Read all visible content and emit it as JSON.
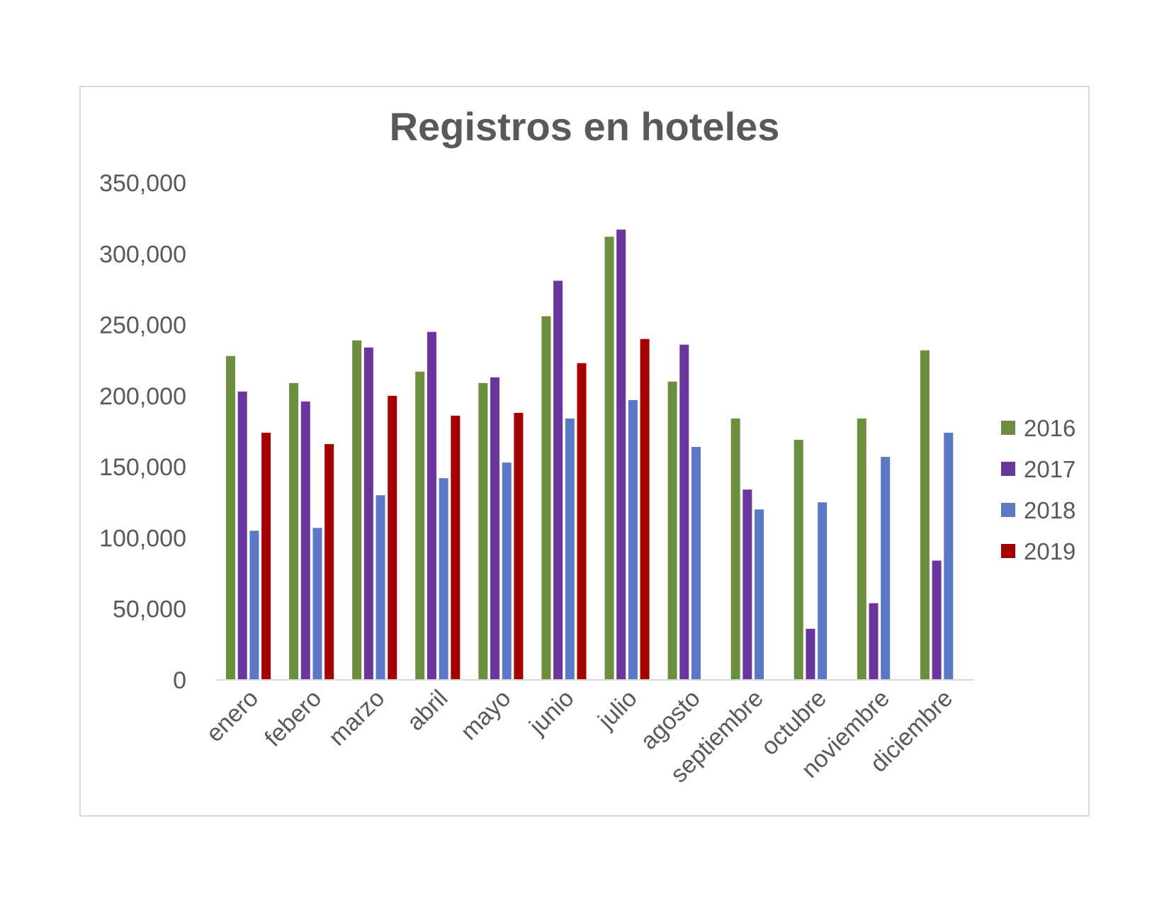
{
  "chart_data": {
    "type": "bar",
    "title": "Registros en hoteles",
    "xlabel": "",
    "ylabel": "",
    "ylim": [
      0,
      350000
    ],
    "yticks": [
      0,
      50000,
      100000,
      150000,
      200000,
      250000,
      300000,
      350000
    ],
    "ytick_labels": [
      "0",
      "50,000",
      "100,000",
      "150,000",
      "200,000",
      "250,000",
      "300,000",
      "350,000"
    ],
    "grid": false,
    "legend_position": "right",
    "categories": [
      "enero",
      "febero",
      "marzo",
      "abril",
      "mayo",
      "junio",
      "julio",
      "agosto",
      "septiembre",
      "octubre",
      "noviembre",
      "diciembre"
    ],
    "series": [
      {
        "name": "2016",
        "color": "#6b8e3f",
        "values": [
          228000,
          209000,
          239000,
          217000,
          209000,
          256000,
          312000,
          210000,
          184000,
          169000,
          184000,
          232000
        ]
      },
      {
        "name": "2017",
        "color": "#6a359c",
        "values": [
          203000,
          196000,
          234000,
          245000,
          213000,
          281000,
          317000,
          236000,
          134000,
          36000,
          54000,
          84000
        ]
      },
      {
        "name": "2018",
        "color": "#5b78c6",
        "values": [
          105000,
          107000,
          130000,
          142000,
          153000,
          184000,
          197000,
          164000,
          120000,
          125000,
          157000,
          174000
        ]
      },
      {
        "name": "2019",
        "color": "#a50000",
        "values": [
          174000,
          166000,
          200000,
          186000,
          188000,
          223000,
          240000,
          null,
          null,
          null,
          null,
          null
        ]
      }
    ]
  }
}
